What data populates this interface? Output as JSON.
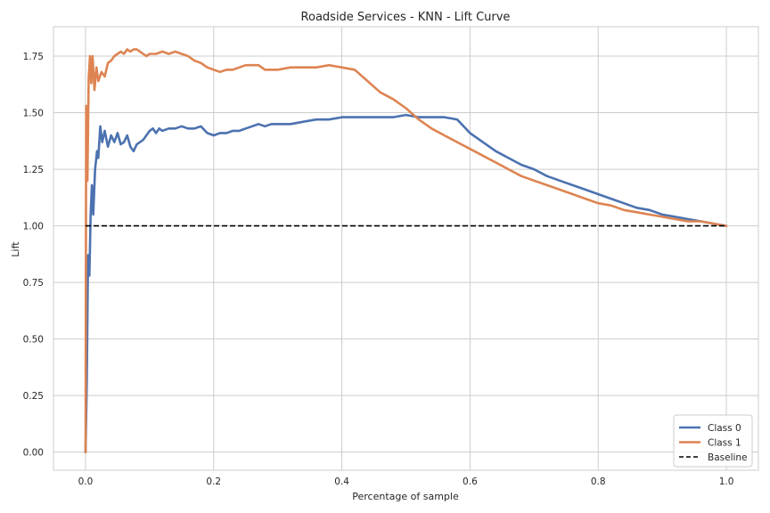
{
  "chart_data": {
    "type": "line",
    "title": "Roadside Services - KNN - Lift Curve",
    "xlabel": "Percentage of sample",
    "ylabel": "Lift",
    "xlim": [
      -0.05,
      1.05
    ],
    "ylim": [
      -0.08,
      1.88
    ],
    "xticks": [
      0.0,
      0.2,
      0.4,
      0.6,
      0.8,
      1.0
    ],
    "xtick_labels": [
      "0.0",
      "0.2",
      "0.4",
      "0.6",
      "0.8",
      "1.0"
    ],
    "yticks": [
      0.0,
      0.25,
      0.5,
      0.75,
      1.0,
      1.25,
      1.5,
      1.75
    ],
    "ytick_labels": [
      "0.00",
      "0.25",
      "0.50",
      "0.75",
      "1.00",
      "1.25",
      "1.50",
      "1.75"
    ],
    "grid": true,
    "legend_position": "bottom-right",
    "series": [
      {
        "name": "Class 0",
        "color": "#4c72b0",
        "style": "solid",
        "points": [
          [
            0.0,
            0.0
          ],
          [
            0.002,
            0.32
          ],
          [
            0.004,
            0.87
          ],
          [
            0.006,
            0.78
          ],
          [
            0.008,
            1.05
          ],
          [
            0.01,
            1.18
          ],
          [
            0.012,
            1.05
          ],
          [
            0.015,
            1.25
          ],
          [
            0.018,
            1.33
          ],
          [
            0.02,
            1.3
          ],
          [
            0.023,
            1.44
          ],
          [
            0.026,
            1.37
          ],
          [
            0.03,
            1.42
          ],
          [
            0.035,
            1.35
          ],
          [
            0.04,
            1.4
          ],
          [
            0.045,
            1.37
          ],
          [
            0.05,
            1.41
          ],
          [
            0.055,
            1.36
          ],
          [
            0.06,
            1.37
          ],
          [
            0.065,
            1.4
          ],
          [
            0.07,
            1.35
          ],
          [
            0.075,
            1.33
          ],
          [
            0.08,
            1.36
          ],
          [
            0.085,
            1.37
          ],
          [
            0.09,
            1.38
          ],
          [
            0.095,
            1.4
          ],
          [
            0.1,
            1.42
          ],
          [
            0.105,
            1.43
          ],
          [
            0.11,
            1.41
          ],
          [
            0.115,
            1.43
          ],
          [
            0.12,
            1.42
          ],
          [
            0.13,
            1.43
          ],
          [
            0.14,
            1.43
          ],
          [
            0.15,
            1.44
          ],
          [
            0.16,
            1.43
          ],
          [
            0.17,
            1.43
          ],
          [
            0.18,
            1.44
          ],
          [
            0.19,
            1.41
          ],
          [
            0.2,
            1.4
          ],
          [
            0.21,
            1.41
          ],
          [
            0.22,
            1.41
          ],
          [
            0.23,
            1.42
          ],
          [
            0.24,
            1.42
          ],
          [
            0.25,
            1.43
          ],
          [
            0.26,
            1.44
          ],
          [
            0.27,
            1.45
          ],
          [
            0.28,
            1.44
          ],
          [
            0.29,
            1.45
          ],
          [
            0.3,
            1.45
          ],
          [
            0.32,
            1.45
          ],
          [
            0.34,
            1.46
          ],
          [
            0.36,
            1.47
          ],
          [
            0.38,
            1.47
          ],
          [
            0.4,
            1.48
          ],
          [
            0.42,
            1.48
          ],
          [
            0.44,
            1.48
          ],
          [
            0.46,
            1.48
          ],
          [
            0.48,
            1.48
          ],
          [
            0.5,
            1.49
          ],
          [
            0.52,
            1.48
          ],
          [
            0.54,
            1.48
          ],
          [
            0.56,
            1.48
          ],
          [
            0.58,
            1.47
          ],
          [
            0.6,
            1.41
          ],
          [
            0.62,
            1.37
          ],
          [
            0.64,
            1.33
          ],
          [
            0.66,
            1.3
          ],
          [
            0.68,
            1.27
          ],
          [
            0.7,
            1.25
          ],
          [
            0.72,
            1.22
          ],
          [
            0.74,
            1.2
          ],
          [
            0.76,
            1.18
          ],
          [
            0.78,
            1.16
          ],
          [
            0.8,
            1.14
          ],
          [
            0.82,
            1.12
          ],
          [
            0.84,
            1.1
          ],
          [
            0.86,
            1.08
          ],
          [
            0.88,
            1.07
          ],
          [
            0.9,
            1.05
          ],
          [
            0.92,
            1.04
          ],
          [
            0.94,
            1.03
          ],
          [
            0.96,
            1.02
          ],
          [
            0.98,
            1.01
          ],
          [
            1.0,
            1.0
          ]
        ]
      },
      {
        "name": "Class 1",
        "color": "#dd8452",
        "style": "solid",
        "points": [
          [
            0.0,
            0.0
          ],
          [
            0.001,
            1.53
          ],
          [
            0.003,
            1.2
          ],
          [
            0.005,
            1.65
          ],
          [
            0.007,
            1.75
          ],
          [
            0.009,
            1.63
          ],
          [
            0.011,
            1.75
          ],
          [
            0.014,
            1.6
          ],
          [
            0.017,
            1.7
          ],
          [
            0.02,
            1.64
          ],
          [
            0.025,
            1.68
          ],
          [
            0.03,
            1.66
          ],
          [
            0.035,
            1.72
          ],
          [
            0.04,
            1.73
          ],
          [
            0.045,
            1.75
          ],
          [
            0.05,
            1.76
          ],
          [
            0.055,
            1.77
          ],
          [
            0.06,
            1.76
          ],
          [
            0.065,
            1.78
          ],
          [
            0.07,
            1.77
          ],
          [
            0.075,
            1.78
          ],
          [
            0.08,
            1.78
          ],
          [
            0.085,
            1.77
          ],
          [
            0.09,
            1.76
          ],
          [
            0.095,
            1.75
          ],
          [
            0.1,
            1.76
          ],
          [
            0.11,
            1.76
          ],
          [
            0.12,
            1.77
          ],
          [
            0.13,
            1.76
          ],
          [
            0.14,
            1.77
          ],
          [
            0.15,
            1.76
          ],
          [
            0.16,
            1.75
          ],
          [
            0.17,
            1.73
          ],
          [
            0.18,
            1.72
          ],
          [
            0.19,
            1.7
          ],
          [
            0.2,
            1.69
          ],
          [
            0.21,
            1.68
          ],
          [
            0.22,
            1.69
          ],
          [
            0.23,
            1.69
          ],
          [
            0.24,
            1.7
          ],
          [
            0.25,
            1.71
          ],
          [
            0.26,
            1.71
          ],
          [
            0.27,
            1.71
          ],
          [
            0.28,
            1.69
          ],
          [
            0.3,
            1.69
          ],
          [
            0.32,
            1.7
          ],
          [
            0.34,
            1.7
          ],
          [
            0.36,
            1.7
          ],
          [
            0.38,
            1.71
          ],
          [
            0.4,
            1.7
          ],
          [
            0.42,
            1.69
          ],
          [
            0.44,
            1.64
          ],
          [
            0.46,
            1.59
          ],
          [
            0.48,
            1.56
          ],
          [
            0.5,
            1.52
          ],
          [
            0.52,
            1.47
          ],
          [
            0.54,
            1.43
          ],
          [
            0.56,
            1.4
          ],
          [
            0.58,
            1.37
          ],
          [
            0.6,
            1.34
          ],
          [
            0.62,
            1.31
          ],
          [
            0.64,
            1.28
          ],
          [
            0.66,
            1.25
          ],
          [
            0.68,
            1.22
          ],
          [
            0.7,
            1.2
          ],
          [
            0.72,
            1.18
          ],
          [
            0.74,
            1.16
          ],
          [
            0.76,
            1.14
          ],
          [
            0.78,
            1.12
          ],
          [
            0.8,
            1.1
          ],
          [
            0.82,
            1.09
          ],
          [
            0.84,
            1.07
          ],
          [
            0.86,
            1.06
          ],
          [
            0.88,
            1.05
          ],
          [
            0.9,
            1.04
          ],
          [
            0.92,
            1.03
          ],
          [
            0.94,
            1.02
          ],
          [
            0.96,
            1.02
          ],
          [
            0.98,
            1.01
          ],
          [
            1.0,
            1.0
          ]
        ]
      },
      {
        "name": "Baseline",
        "color": "#000000",
        "style": "dashed",
        "points": [
          [
            0.0,
            1.0
          ],
          [
            1.0,
            1.0
          ]
        ]
      }
    ]
  }
}
